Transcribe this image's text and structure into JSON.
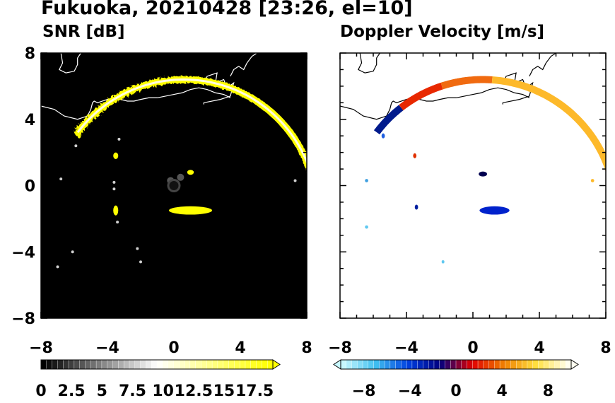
{
  "title": "Fukuoka, 20210428 [23:26, el=10]",
  "chart_data": [
    {
      "type": "heatmap",
      "title": "SNR [dB]",
      "xlim": [
        -8,
        8
      ],
      "ylim": [
        -8,
        8
      ],
      "x_ticks": [
        "−8",
        "−4",
        "0",
        "4",
        "8"
      ],
      "y_ticks": [
        "8",
        "4",
        "0",
        "−4",
        "−8"
      ],
      "x_tick_values": [
        -8,
        -4,
        0,
        4,
        8
      ],
      "y_tick_values": [
        8,
        4,
        0,
        -4,
        -8
      ],
      "background": "#000000",
      "colorbar": {
        "labels": [
          "0",
          "2.5",
          "5",
          "7.5",
          "10",
          "12.5",
          "15",
          "17.5"
        ],
        "values": [
          0,
          2.5,
          5,
          7.5,
          10,
          12.5,
          15,
          17.5
        ],
        "range": [
          0,
          19
        ],
        "colors": [
          "#000000",
          "#ffffff",
          "#ffff00"
        ]
      },
      "echo_arc": {
        "center_x": 0.6,
        "center_y": -1.6,
        "radius": 8.0,
        "start_deg": 143,
        "end_deg": 15,
        "color": "#ffff00"
      },
      "echo_patches": [
        {
          "x": 1.0,
          "y": -1.5,
          "w": 2.6,
          "h": 0.5,
          "color": "#ffff00"
        },
        {
          "x": -3.5,
          "y": 1.8,
          "w": 0.3,
          "h": 0.4,
          "color": "#ffff00"
        },
        {
          "x": -3.5,
          "y": -1.5,
          "w": 0.3,
          "h": 0.6,
          "color": "#ffff00"
        },
        {
          "x": 1.0,
          "y": 0.8,
          "w": 0.4,
          "h": 0.3,
          "color": "#ffff00"
        },
        {
          "x": -5.7,
          "y": 3.0,
          "w": 0.2,
          "h": 0.3,
          "color": "#ffff00"
        }
      ]
    },
    {
      "type": "heatmap",
      "title": "Doppler Velocity [m/s]",
      "xlim": [
        -8,
        8
      ],
      "ylim": [
        -8,
        8
      ],
      "x_ticks": [
        "−8",
        "−4",
        "0",
        "4",
        "8"
      ],
      "y_ticks": [],
      "x_tick_values": [
        -8,
        -4,
        0,
        4,
        8
      ],
      "y_tick_values": [
        8,
        4,
        0,
        -4,
        -8
      ],
      "background": "#ffffff",
      "colorbar": {
        "labels": [
          "−8",
          "−4",
          "0",
          "4",
          "8"
        ],
        "values": [
          -8,
          -4,
          0,
          4,
          8
        ],
        "range": [
          -10,
          10
        ],
        "colors": [
          "#c8f8ff",
          "#40c0f0",
          "#0040e0",
          "#000080",
          "#e00000",
          "#f08000",
          "#ffe040",
          "#fffff0"
        ]
      },
      "echo_arc_segments": [
        {
          "start_deg": 143,
          "end_deg": 128,
          "color": "#001a8c"
        },
        {
          "start_deg": 128,
          "end_deg": 108,
          "color": "#e82800"
        },
        {
          "start_deg": 108,
          "end_deg": 86,
          "color": "#f06a10"
        },
        {
          "start_deg": 86,
          "end_deg": 15,
          "color": "#fdb92a"
        }
      ],
      "echo_patches": [
        {
          "x": 1.3,
          "y": -1.5,
          "w": 1.8,
          "h": 0.5,
          "color": "#0022cc"
        },
        {
          "x": -3.5,
          "y": 1.8,
          "w": 0.2,
          "h": 0.3,
          "color": "#e03000"
        },
        {
          "x": -5.4,
          "y": 3.0,
          "w": 0.2,
          "h": 0.3,
          "color": "#2060e0"
        },
        {
          "x": 0.6,
          "y": 0.7,
          "w": 0.5,
          "h": 0.3,
          "color": "#000050"
        },
        {
          "x": -3.4,
          "y": -1.3,
          "w": 0.2,
          "h": 0.3,
          "color": "#0020a0"
        },
        {
          "x": -6.4,
          "y": -2.5,
          "w": 0.2,
          "h": 0.2,
          "color": "#60c8f0"
        },
        {
          "x": 7.2,
          "y": 0.3,
          "w": 0.2,
          "h": 0.2,
          "color": "#fdb92a"
        },
        {
          "x": -6.4,
          "y": 0.3,
          "w": 0.2,
          "h": 0.2,
          "color": "#40a0e0"
        },
        {
          "x": -1.8,
          "y": -4.6,
          "w": 0.1,
          "h": 0.2,
          "color": "#60c8f0"
        }
      ]
    }
  ]
}
